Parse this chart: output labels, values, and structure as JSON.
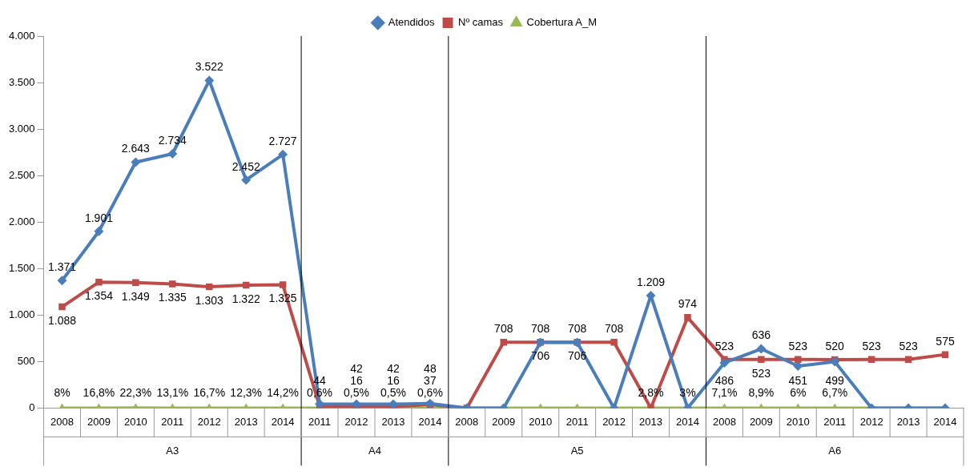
{
  "chart_data": {
    "type": "line",
    "categories": [
      "2008",
      "2009",
      "2010",
      "2011",
      "2012",
      "2013",
      "2014",
      "2011",
      "2012",
      "2013",
      "2014",
      "2008",
      "2009",
      "2010",
      "2011",
      "2012",
      "2013",
      "2014",
      "2008",
      "2009",
      "2010",
      "2011",
      "2012",
      "2013",
      "2014"
    ],
    "series": [
      {
        "name": "Atendidos",
        "color": "#4a7ebb",
        "marker": "diamond",
        "values": [
          1371,
          1901,
          2643,
          2734,
          3522,
          2452,
          2727,
          44,
          42,
          42,
          48,
          0,
          0,
          706,
          706,
          0,
          1209,
          0,
          486,
          636,
          451,
          499,
          0,
          0,
          0
        ],
        "value_labels": [
          "1.371",
          "1.901",
          "2.643",
          "2.734",
          "3.522",
          "2.452",
          "2.727",
          "44",
          "42",
          "42",
          "48",
          null,
          null,
          "706",
          "706",
          null,
          "1.209",
          null,
          "486",
          "636",
          "451",
          "499",
          null,
          null,
          null
        ]
      },
      {
        "name": "Nº camas",
        "color": "#be4b48",
        "marker": "square",
        "values": [
          1088,
          1354,
          1349,
          1335,
          1303,
          1322,
          1325,
          16,
          16,
          16,
          37,
          0,
          708,
          708,
          708,
          708,
          0,
          974,
          523,
          523,
          523,
          520,
          523,
          523,
          575
        ],
        "value_labels": [
          "1.088",
          "1.354",
          "1.349",
          "1.335",
          "1.303",
          "1.322",
          "1.325",
          null,
          "16",
          "16",
          "37",
          null,
          "708",
          "708",
          "708",
          "708",
          null,
          "974",
          "523",
          "523",
          "523",
          "520",
          "523",
          "523",
          "575"
        ]
      },
      {
        "name": "Cobertura A_M",
        "color": "#98b954",
        "marker": "triangle",
        "values": [
          0.08,
          0.168,
          0.223,
          0.131,
          0.167,
          0.123,
          0.142,
          0.006,
          0.005,
          0.005,
          0.006,
          0,
          0,
          0,
          0,
          0,
          0.028,
          0.03,
          0.071,
          0.089,
          0.06,
          0.067,
          0,
          0,
          0
        ],
        "value_labels": [
          "8%",
          "16,8%",
          "22,3%",
          "13,1%",
          "16,7%",
          "12,3%",
          "14,2%",
          "0,6%",
          "0,5%",
          "0,5%",
          "0,6%",
          null,
          null,
          null,
          null,
          null,
          "2,8%",
          "3%",
          "7,1%",
          "8,9%",
          "6%",
          "6,7%",
          null,
          null,
          null
        ]
      }
    ],
    "ylim": [
      0,
      4000
    ],
    "yticks": [
      {
        "value": 0,
        "label": "0"
      },
      {
        "value": 500,
        "label": "500"
      },
      {
        "value": 1000,
        "label": "1.000"
      },
      {
        "value": 1500,
        "label": "1.500"
      },
      {
        "value": 2000,
        "label": "2.000"
      },
      {
        "value": 2500,
        "label": "2.500"
      },
      {
        "value": 3000,
        "label": "3.000"
      },
      {
        "value": 3500,
        "label": "3.500"
      },
      {
        "value": 4000,
        "label": "4.000"
      }
    ],
    "annotations": [
      "A3",
      "A4",
      "A5",
      "A6"
    ],
    "legend": "top",
    "grid": false,
    "line_style": "solid"
  }
}
